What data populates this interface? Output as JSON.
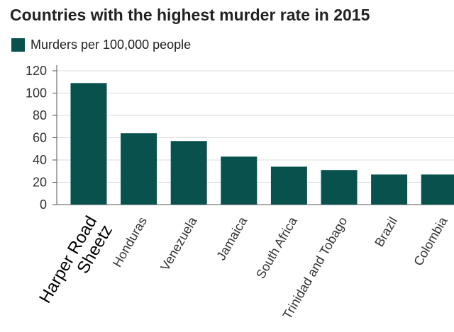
{
  "title": "Countries with the highest murder rate in 2015",
  "legend": {
    "label": "Murders per 100,000 people"
  },
  "colors": {
    "bar": "#08514c",
    "grid": "#dcdcdc",
    "axis": "#555555",
    "text": "#333333"
  },
  "chart_data": {
    "type": "bar",
    "title": "Countries with the highest murder rate in 2015",
    "xlabel": "",
    "ylabel": "",
    "ylim": [
      0,
      120
    ],
    "yticks": [
      0,
      20,
      40,
      60,
      80,
      100,
      120
    ],
    "grid": true,
    "legend_position": "top-left",
    "series": [
      {
        "name": "Murders per 100,000 people",
        "values": [
          109,
          64,
          57,
          43,
          34,
          31,
          27,
          27
        ]
      }
    ],
    "categories": [
      "Harper Road\nSheetz",
      "Honduras",
      "Venezuela",
      "Jamaica",
      "South Africa",
      "Trinidad and Tobago",
      "Brazil",
      "Colombia"
    ]
  }
}
